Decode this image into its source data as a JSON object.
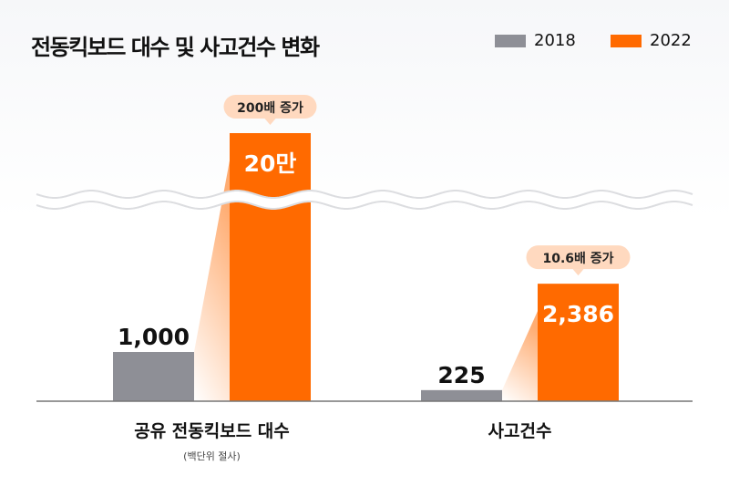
{
  "chart_data": {
    "type": "bar",
    "title": "전동킥보드 대수 및 사고건수 변화",
    "categories": [
      "공유 전동킥보드 대수",
      "사고건수"
    ],
    "category_notes": [
      "(백단위 절사)",
      ""
    ],
    "series": [
      {
        "name": "2018",
        "values": [
          1000,
          225
        ],
        "labels": [
          "1,000",
          "225"
        ],
        "color": "#8e8f96"
      },
      {
        "name": "2022",
        "values": [
          200000,
          2386
        ],
        "labels": [
          "20만",
          "2,386"
        ],
        "color": "#ff6a00"
      }
    ],
    "annotations": [
      "200배 증가",
      "10.6배 증가"
    ],
    "axis_break": true,
    "legend": "top-right",
    "grid": false
  }
}
